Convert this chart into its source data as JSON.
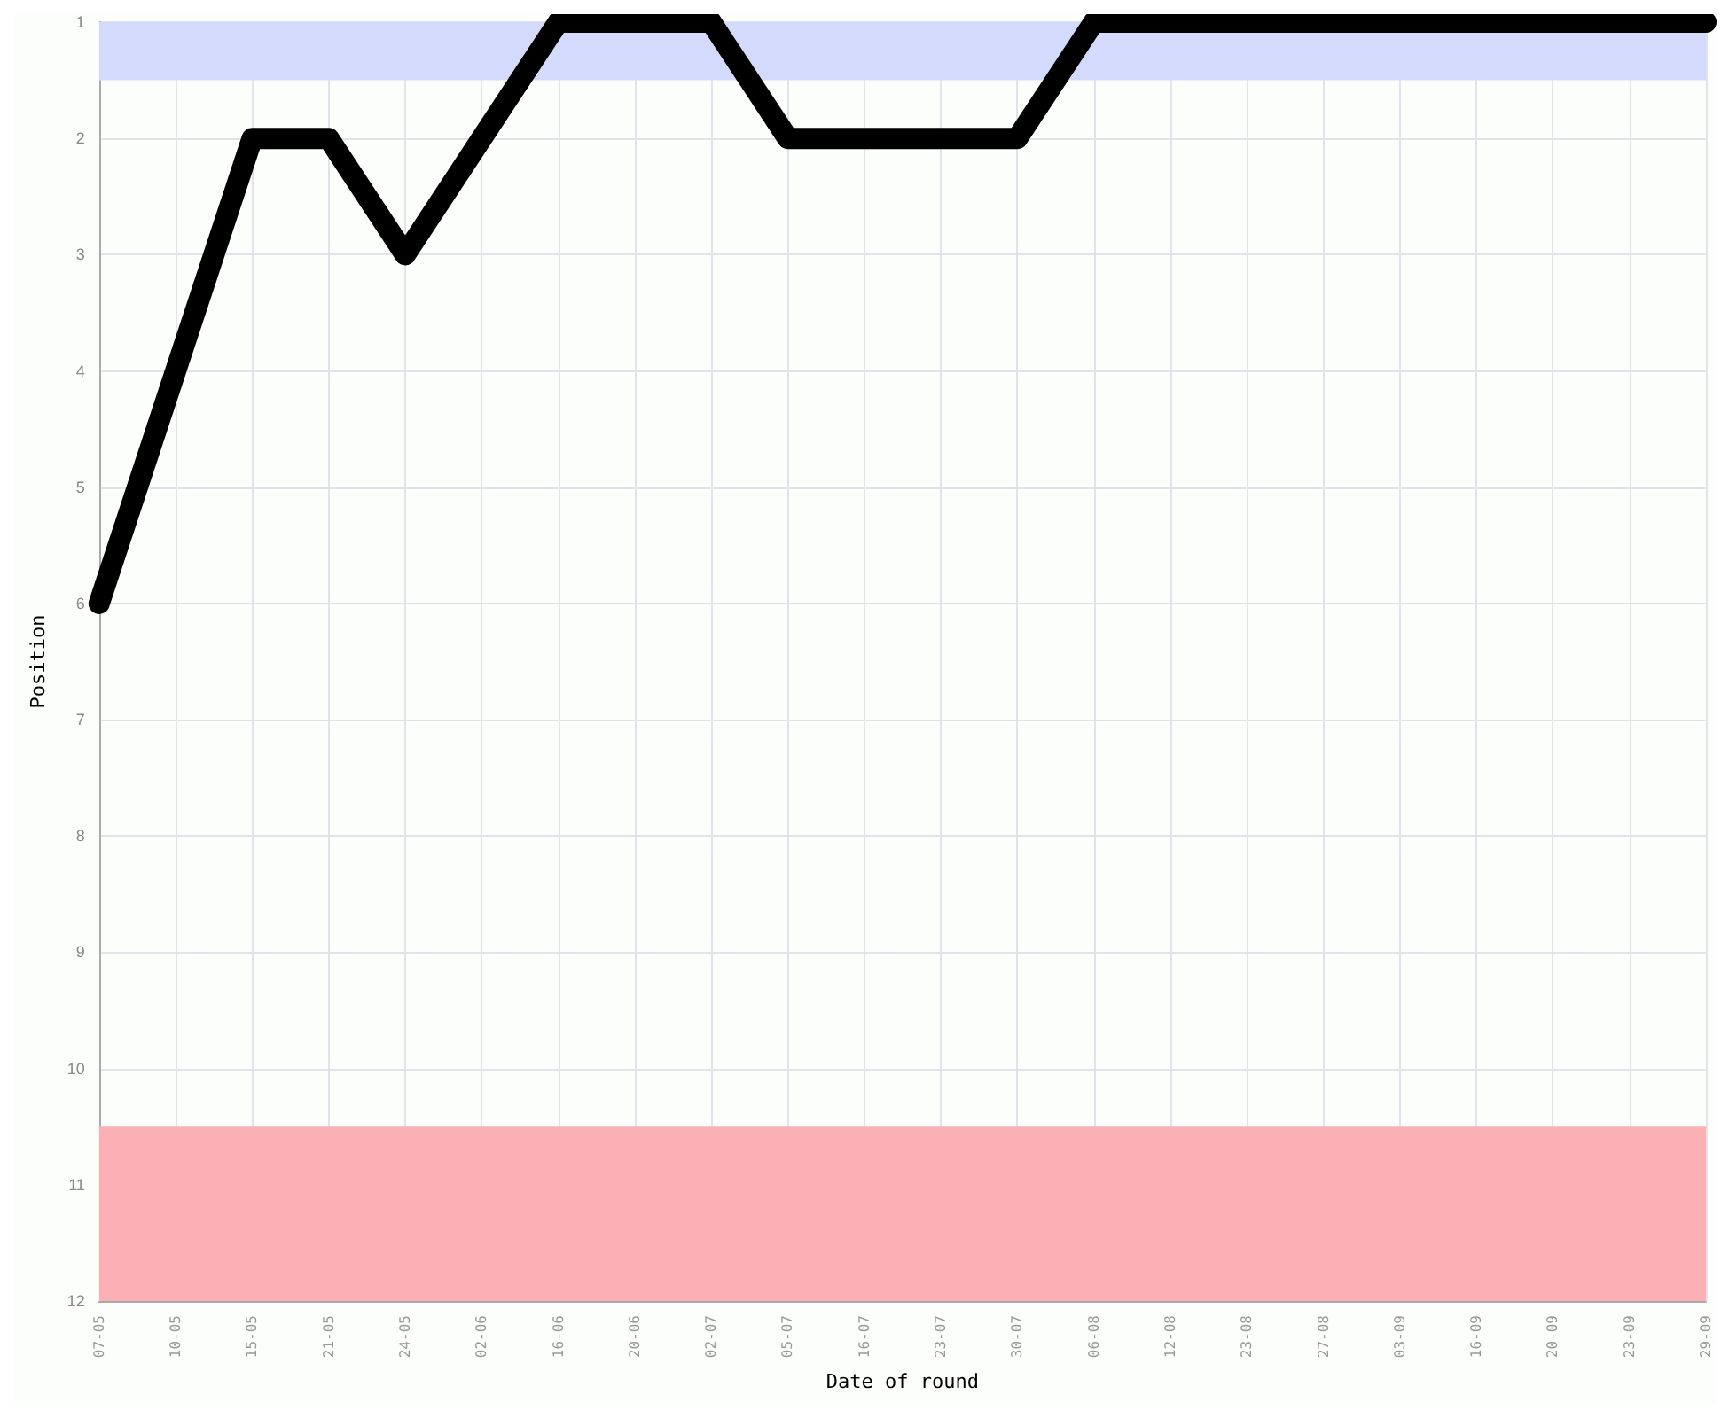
{
  "chart_data": {
    "type": "line",
    "xlabel": "Date of round",
    "ylabel": "Position",
    "categories": [
      "07-05",
      "10-05",
      "15-05",
      "21-05",
      "24-05",
      "02-06",
      "16-06",
      "20-06",
      "02-07",
      "05-07",
      "16-07",
      "23-07",
      "30-07",
      "06-08",
      "12-08",
      "23-08",
      "27-08",
      "03-09",
      "16-09",
      "20-09",
      "23-09",
      "29-09"
    ],
    "series": [
      {
        "color": "#000000",
        "values": [
          6,
          4,
          2,
          2,
          3,
          2,
          1,
          1,
          1,
          2,
          2,
          2,
          2,
          1,
          1,
          1,
          1,
          1,
          1,
          1,
          1,
          1
        ]
      }
    ],
    "ylim": [
      12,
      1
    ],
    "yticks": [
      1,
      2,
      3,
      4,
      5,
      6,
      7,
      8,
      9,
      10,
      11,
      12
    ],
    "bands": [
      {
        "axis": "y",
        "from": 1,
        "to": 1.5,
        "color": "#d4dafc"
      },
      {
        "axis": "y",
        "from": 10.5,
        "to": 12,
        "color": "#fbb0b5"
      }
    ],
    "grid": true,
    "line_style": "solid"
  }
}
